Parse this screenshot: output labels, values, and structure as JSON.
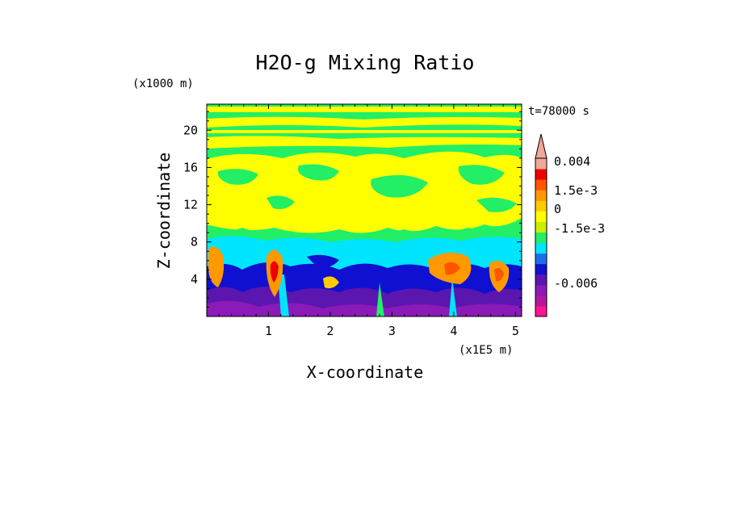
{
  "chart_data": {
    "type": "heatmap",
    "title": "H2O-g Mixing Ratio",
    "xlabel": "X-coordinate",
    "ylabel": "Z-coordinate",
    "x_scale_note": "(x1E5 m)",
    "y_scale_note": "(x1000 m)",
    "time_label": "t=78000 s",
    "xlim": [
      0,
      5.1
    ],
    "ylim": [
      0,
      22.8
    ],
    "x_ticks": [
      "1",
      "2",
      "3",
      "4",
      "5"
    ],
    "y_ticks": [
      "4",
      "8",
      "12",
      "16",
      "20"
    ],
    "colorbar": {
      "labels": [
        "0.004",
        "1.5e-3",
        "0",
        "-1.5e-3",
        "-0.006"
      ],
      "colors": [
        "#ff1493",
        "#b5179e",
        "#8b1ab8",
        "#5b16b0",
        "#1010d0",
        "#1e6ee8",
        "#00e5ff",
        "#22ee66",
        "#c8f000",
        "#ffff00",
        "#ffcc00",
        "#ff9900",
        "#ff5500",
        "#ee0000",
        "#f0a898"
      ],
      "extend": "max"
    },
    "dominant_regions": [
      {
        "z_range": [
          0,
          3
        ],
        "levels": "strongly negative (purple/blue)"
      },
      {
        "z_range": [
          3,
          8
        ],
        "levels": "near zero to slightly negative (cyan/blue) with positive orange plumes near x=0.1, 1.0, 3.9, 4.8"
      },
      {
        "z_range": [
          8,
          18
        ],
        "levels": "slightly positive (yellow) with green patches"
      },
      {
        "z_range": [
          18,
          22.8
        ],
        "levels": "near zero (green) with yellow streaks"
      }
    ]
  }
}
